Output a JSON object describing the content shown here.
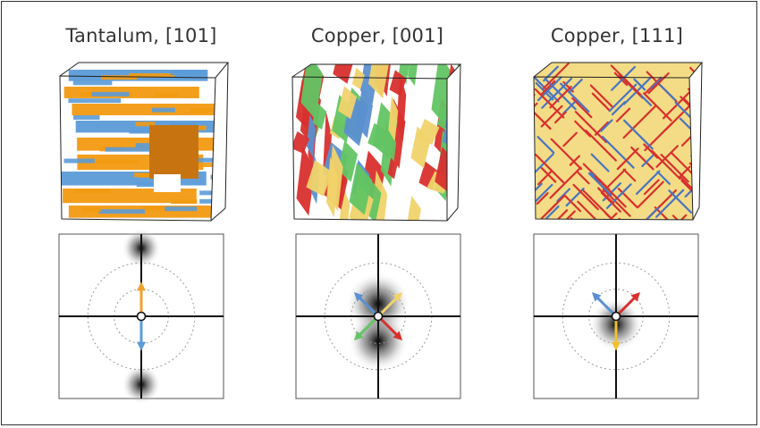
{
  "panels": [
    {
      "title": "Tantalum, [101]",
      "cube_style": "layered-slabs",
      "cube_colors": [
        "#f29a11",
        "#5b9bd8"
      ],
      "arrows": [
        {
          "color": "#f0a030",
          "direction": "up"
        },
        {
          "color": "#5b9bd8",
          "direction": "down"
        }
      ]
    },
    {
      "title": "Copper, [001]",
      "cube_style": "twisted-plates",
      "cube_colors": [
        "#63c463",
        "#d8302e",
        "#f0d36a",
        "#5b8fd0"
      ],
      "arrows": [
        {
          "color": "#5b8fd0",
          "direction": "up-left"
        },
        {
          "color": "#f0d36a",
          "direction": "up-right"
        },
        {
          "color": "#63c463",
          "direction": "down-left"
        },
        {
          "color": "#d8302e",
          "direction": "down-right"
        }
      ]
    },
    {
      "title": "Copper, [111]",
      "cube_style": "dense-dislocations",
      "cube_colors": [
        "#f0d36a",
        "#d8302e",
        "#4a74c0"
      ],
      "arrows": [
        {
          "color": "#5b8fd0",
          "direction": "up-left"
        },
        {
          "color": "#d8302e",
          "direction": "up-right"
        },
        {
          "color": "#f0c030",
          "direction": "down"
        }
      ]
    }
  ]
}
